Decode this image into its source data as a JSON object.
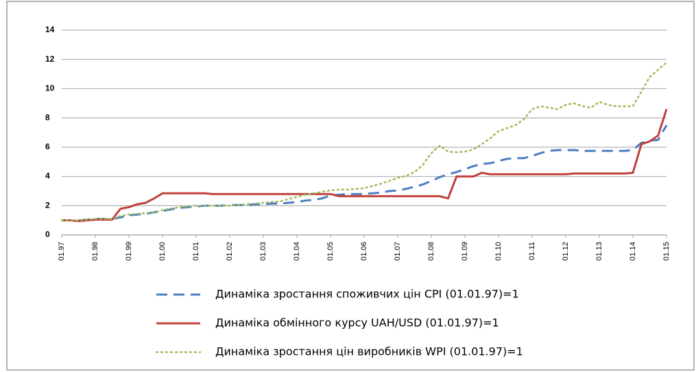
{
  "chart_data": {
    "type": "line",
    "categories": [
      "01.97",
      null,
      null,
      null,
      "01.98",
      null,
      null,
      null,
      "01.99",
      null,
      null,
      null,
      "01.00",
      null,
      null,
      null,
      "01.01",
      null,
      null,
      null,
      "01.02",
      null,
      null,
      null,
      "01.03",
      null,
      null,
      null,
      "01.04",
      null,
      null,
      null,
      "01.05",
      null,
      null,
      null,
      "01.06",
      null,
      null,
      null,
      "01.07",
      null,
      null,
      null,
      "01.08",
      null,
      null,
      null,
      "01.09",
      null,
      null,
      null,
      "01.10",
      null,
      null,
      null,
      "01.11",
      null,
      null,
      null,
      "01.12",
      null,
      null,
      null,
      "01.13",
      null,
      null,
      null,
      "01.14",
      null,
      null,
      null,
      "01.15"
    ],
    "series": [
      {
        "name": "Динаміка зростання споживчих цін CPI (01.01.97)=1",
        "color": "#4a7ec0",
        "dash": "dashed",
        "values": [
          1.0,
          1.0,
          1.0,
          1.05,
          1.1,
          1.1,
          1.1,
          1.2,
          1.35,
          1.4,
          1.45,
          1.55,
          1.65,
          1.75,
          1.85,
          1.9,
          1.95,
          2.0,
          2.0,
          2.0,
          2.05,
          2.05,
          2.05,
          2.1,
          2.1,
          2.15,
          2.15,
          2.2,
          2.25,
          2.35,
          2.4,
          2.5,
          2.7,
          2.75,
          2.8,
          2.8,
          2.8,
          2.85,
          2.9,
          3.0,
          3.05,
          3.15,
          3.3,
          3.45,
          3.7,
          3.95,
          4.15,
          4.3,
          4.5,
          4.7,
          4.85,
          4.9,
          5.05,
          5.2,
          5.25,
          5.25,
          5.4,
          5.6,
          5.75,
          5.8,
          5.8,
          5.8,
          5.75,
          5.75,
          5.75,
          5.75,
          5.75,
          5.75,
          5.8,
          6.3,
          6.45,
          6.5,
          7.5
        ]
      },
      {
        "name": "Динаміка обмінного курсу UAH/USD (01.01.97)=1",
        "color": "#c0403c",
        "dash": "solid",
        "values": [
          1.0,
          1.0,
          0.95,
          1.0,
          1.05,
          1.05,
          1.05,
          1.8,
          1.9,
          2.1,
          2.2,
          2.5,
          2.85,
          2.85,
          2.85,
          2.85,
          2.85,
          2.85,
          2.8,
          2.8,
          2.8,
          2.8,
          2.8,
          2.8,
          2.8,
          2.8,
          2.8,
          2.8,
          2.8,
          2.8,
          2.8,
          2.8,
          2.8,
          2.65,
          2.65,
          2.65,
          2.65,
          2.65,
          2.65,
          2.65,
          2.65,
          2.65,
          2.65,
          2.65,
          2.65,
          2.65,
          2.5,
          4.0,
          4.0,
          4.0,
          4.25,
          4.15,
          4.15,
          4.15,
          4.15,
          4.15,
          4.15,
          4.15,
          4.15,
          4.15,
          4.15,
          4.2,
          4.2,
          4.2,
          4.2,
          4.2,
          4.2,
          4.2,
          4.25,
          6.2,
          6.4,
          6.8,
          8.6
        ]
      },
      {
        "name": "Динаміка зростання цін виробників WPI (01.01.97)=1",
        "color": "#9bbb59",
        "dash": "dotted",
        "values": [
          1.0,
          1.0,
          1.0,
          1.05,
          1.1,
          1.1,
          1.1,
          1.3,
          1.4,
          1.45,
          1.5,
          1.55,
          1.7,
          1.8,
          1.9,
          1.95,
          2.0,
          2.0,
          2.0,
          2.0,
          2.0,
          2.05,
          2.1,
          2.15,
          2.2,
          2.25,
          2.3,
          2.45,
          2.6,
          2.75,
          2.85,
          2.95,
          3.05,
          3.1,
          3.1,
          3.15,
          3.2,
          3.35,
          3.5,
          3.7,
          3.9,
          4.05,
          4.3,
          4.8,
          5.6,
          6.1,
          5.7,
          5.65,
          5.7,
          5.85,
          6.2,
          6.6,
          7.1,
          7.3,
          7.5,
          7.9,
          8.6,
          8.8,
          8.7,
          8.6,
          8.9,
          9.0,
          8.8,
          8.7,
          9.1,
          8.9,
          8.8,
          8.8,
          8.8,
          9.8,
          10.8,
          11.3,
          11.8
        ]
      }
    ],
    "ylim": [
      0,
      14
    ],
    "yticks": [
      0,
      2,
      4,
      6,
      8,
      10,
      12,
      14
    ],
    "grid": true
  }
}
